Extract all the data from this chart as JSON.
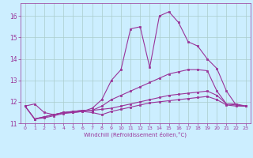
{
  "title": "",
  "xlabel": "Windchill (Refroidissement éolien,°C)",
  "ylabel": "",
  "bg_color": "#cceeff",
  "grid_color": "#aacccc",
  "line_color": "#993399",
  "xlim": [
    -0.5,
    23.5
  ],
  "ylim": [
    11.0,
    16.6
  ],
  "xticks": [
    0,
    1,
    2,
    3,
    4,
    5,
    6,
    7,
    8,
    9,
    10,
    11,
    12,
    13,
    14,
    15,
    16,
    17,
    18,
    19,
    20,
    21,
    22,
    23
  ],
  "yticks": [
    11,
    12,
    13,
    14,
    15,
    16
  ],
  "series": [
    [
      11.8,
      11.9,
      11.5,
      11.4,
      11.5,
      11.5,
      11.55,
      11.7,
      12.1,
      13.0,
      13.5,
      15.4,
      15.5,
      13.6,
      16.0,
      16.2,
      15.7,
      14.8,
      14.6,
      14.0,
      13.55,
      12.5,
      11.85,
      11.8
    ],
    [
      11.8,
      11.2,
      11.3,
      11.4,
      11.5,
      11.55,
      11.6,
      11.6,
      11.8,
      12.1,
      12.3,
      12.5,
      12.7,
      12.9,
      13.1,
      13.3,
      13.4,
      13.5,
      13.5,
      13.45,
      12.5,
      11.9,
      11.9,
      11.8
    ],
    [
      11.8,
      11.2,
      11.3,
      11.4,
      11.5,
      11.55,
      11.6,
      11.6,
      11.65,
      11.7,
      11.8,
      11.9,
      12.0,
      12.1,
      12.2,
      12.3,
      12.35,
      12.4,
      12.45,
      12.5,
      12.3,
      11.9,
      11.85,
      11.8
    ],
    [
      11.8,
      11.2,
      11.25,
      11.35,
      11.45,
      11.5,
      11.55,
      11.5,
      11.4,
      11.55,
      11.65,
      11.75,
      11.85,
      11.95,
      12.0,
      12.05,
      12.1,
      12.15,
      12.2,
      12.25,
      12.1,
      11.85,
      11.8,
      11.8
    ]
  ]
}
